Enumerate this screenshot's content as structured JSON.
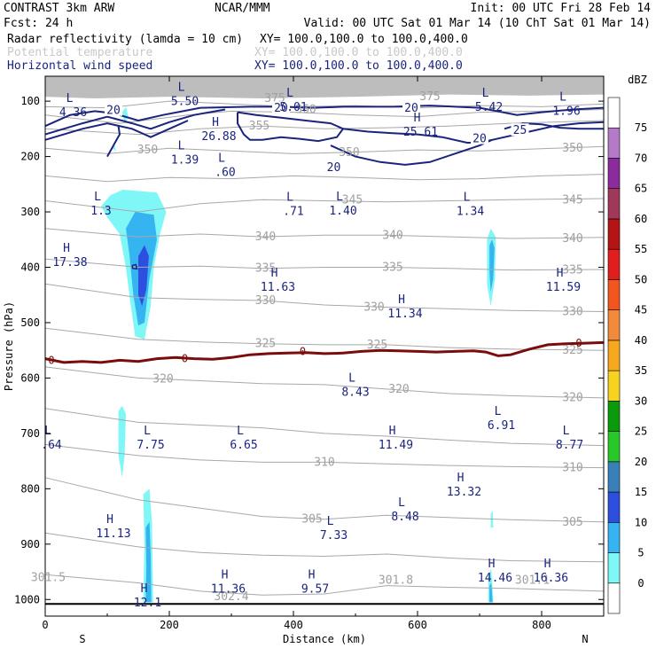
{
  "header": {
    "title_left": "CONTRAST  3km ARW",
    "title_mid": "NCAR/MMM",
    "init": "Init: 00 UTC Fri 28 Feb 14",
    "fcst": "Fcst:   24 h",
    "valid": "Valid: 00 UTC Sat 01 Mar 14 (10 ChT Sat 01 Mar 14)",
    "fields": [
      {
        "name": "Radar reflectivity (lamda = 10 cm)",
        "xy": "XY= 100.0,100.0 to 100.0,400.0",
        "color": "#000000"
      },
      {
        "name": "Potential temperature",
        "xy": "XY= 100.0,100.0 to 100.0,400.0",
        "color": "#c8c8c8"
      },
      {
        "name": "Horizontal wind speed",
        "xy": "XY= 100.0,100.0 to 100.0,400.0",
        "color": "#1a237e"
      }
    ]
  },
  "chart_data": {
    "type": "cross-section",
    "xlabel": "Distance (km)",
    "ylabel": "Pressure (hPa)",
    "xlim": [
      0,
      900
    ],
    "ylim": [
      1030,
      55
    ],
    "xticks": [
      0,
      200,
      400,
      600,
      800
    ],
    "yticks": [
      100,
      200,
      300,
      400,
      500,
      600,
      700,
      800,
      900,
      1000
    ],
    "x_end_labels": {
      "left": "S",
      "right": "N"
    },
    "colorbar": {
      "unit": "dBZ",
      "levels": [
        0,
        5,
        10,
        15,
        20,
        25,
        30,
        35,
        40,
        45,
        50,
        55,
        60,
        65,
        70,
        75
      ],
      "colors": [
        "#ffffff",
        "#7ff7f7",
        "#36b4f2",
        "#2d4fe0",
        "#3a80b8",
        "#29c829",
        "#0a9a0a",
        "#f7d21e",
        "#f7a91e",
        "#f28a3c",
        "#f2561e",
        "#e01e1e",
        "#b41414",
        "#a0385a",
        "#8c2b9b",
        "#b47ac8",
        "#ffffff"
      ]
    },
    "theta_labels": [
      {
        "v": "375",
        "x": 620,
        "p": 92
      },
      {
        "v": "375",
        "x": 370,
        "p": 95
      },
      {
        "v": "360",
        "x": 420,
        "p": 115
      },
      {
        "v": "355",
        "x": 345,
        "p": 145
      },
      {
        "v": "350",
        "x": 165,
        "p": 188
      },
      {
        "v": "350",
        "x": 490,
        "p": 193
      },
      {
        "v": "350",
        "x": 850,
        "p": 185
      },
      {
        "v": "345",
        "x": 495,
        "p": 278
      },
      {
        "v": "345",
        "x": 850,
        "p": 278
      },
      {
        "v": "340",
        "x": 355,
        "p": 345
      },
      {
        "v": "340",
        "x": 560,
        "p": 342
      },
      {
        "v": "340",
        "x": 850,
        "p": 348
      },
      {
        "v": "335",
        "x": 355,
        "p": 402
      },
      {
        "v": "335",
        "x": 560,
        "p": 400
      },
      {
        "v": "335",
        "x": 850,
        "p": 405
      },
      {
        "v": "330",
        "x": 355,
        "p": 460
      },
      {
        "v": "330",
        "x": 530,
        "p": 472
      },
      {
        "v": "330",
        "x": 850,
        "p": 480
      },
      {
        "v": "325",
        "x": 355,
        "p": 538
      },
      {
        "v": "325",
        "x": 535,
        "p": 540
      },
      {
        "v": "325",
        "x": 850,
        "p": 550
      },
      {
        "v": "320",
        "x": 190,
        "p": 602
      },
      {
        "v": "320",
        "x": 570,
        "p": 620
      },
      {
        "v": "320",
        "x": 850,
        "p": 635
      },
      {
        "v": "310",
        "x": 450,
        "p": 752
      },
      {
        "v": "310",
        "x": 850,
        "p": 762
      },
      {
        "v": "305",
        "x": 430,
        "p": 855
      },
      {
        "v": "305",
        "x": 850,
        "p": 860
      },
      {
        "v": "301.5",
        "x": 5,
        "p": 960
      },
      {
        "v": "302.4",
        "x": 300,
        "p": 995
      },
      {
        "v": "301.8",
        "x": 565,
        "p": 965
      },
      {
        "v": "301.1",
        "x": 785,
        "p": 965
      }
    ],
    "wind_labels": [
      {
        "v": "20",
        "x": 110,
        "p": 117
      },
      {
        "v": "20",
        "x": 380,
        "p": 113
      },
      {
        "v": "20",
        "x": 590,
        "p": 113
      },
      {
        "v": "20",
        "x": 465,
        "p": 220
      },
      {
        "v": "20",
        "x": 700,
        "p": 168
      },
      {
        "v": "25",
        "x": 765,
        "p": 153
      }
    ],
    "zero_isotherm_labels": [
      {
        "v": "0",
        "x": 10,
        "p": 568
      },
      {
        "v": "0",
        "x": 225,
        "p": 565
      },
      {
        "v": "0",
        "x": 415,
        "p": 552
      },
      {
        "v": "0",
        "x": 860,
        "p": 537
      }
    ],
    "extrema": [
      {
        "t": "L",
        "v": "4.36",
        "x": 45,
        "p": 105
      },
      {
        "t": "L",
        "v": "5.50",
        "x": 225,
        "p": 85
      },
      {
        "t": "H",
        "v": "26.88",
        "x": 280,
        "p": 148
      },
      {
        "t": "L",
        "v": "5.01",
        "x": 400,
        "p": 95
      },
      {
        "t": "H",
        "v": "25.61",
        "x": 605,
        "p": 140
      },
      {
        "t": "L",
        "v": "5.42",
        "x": 715,
        "p": 95
      },
      {
        "t": "L",
        "v": "1.96",
        "x": 840,
        "p": 102
      },
      {
        "t": "L",
        "v": "1.39",
        "x": 225,
        "p": 190
      },
      {
        "t": "L",
        "v": ".60",
        "x": 290,
        "p": 213
      },
      {
        "t": "L",
        "v": "1.3",
        "x": 90,
        "p": 282
      },
      {
        "t": "L",
        "v": ".71",
        "x": 400,
        "p": 283
      },
      {
        "t": "L",
        "v": "1.40",
        "x": 480,
        "p": 282
      },
      {
        "t": "L",
        "v": "1.34",
        "x": 685,
        "p": 283
      },
      {
        "t": "H",
        "v": "17.38",
        "x": 40,
        "p": 375
      },
      {
        "t": "H",
        "v": "11.63",
        "x": 375,
        "p": 420
      },
      {
        "t": "H",
        "v": "11.34",
        "x": 580,
        "p": 468
      },
      {
        "t": "H",
        "v": "11.59",
        "x": 835,
        "p": 420
      },
      {
        "t": "L",
        "v": "8.43",
        "x": 500,
        "p": 610
      },
      {
        "t": "L",
        "v": "6.91",
        "x": 735,
        "p": 670
      },
      {
        "t": "L",
        "v": ".64",
        "x": 10,
        "p": 705
      },
      {
        "t": "L",
        "v": "7.75",
        "x": 170,
        "p": 705
      },
      {
        "t": "L",
        "v": "6.65",
        "x": 320,
        "p": 705
      },
      {
        "t": "H",
        "v": "11.49",
        "x": 565,
        "p": 705
      },
      {
        "t": "L",
        "v": "8.77",
        "x": 845,
        "p": 705
      },
      {
        "t": "H",
        "v": "13.32",
        "x": 675,
        "p": 790
      },
      {
        "t": "L",
        "v": "8.48",
        "x": 580,
        "p": 835
      },
      {
        "t": "H",
        "v": "11.13",
        "x": 110,
        "p": 865
      },
      {
        "t": "L",
        "v": "7.33",
        "x": 465,
        "p": 868
      },
      {
        "t": "H",
        "v": "11.36",
        "x": 295,
        "p": 965
      },
      {
        "t": "H",
        "v": "9.57",
        "x": 435,
        "p": 965
      },
      {
        "t": "H",
        "v": "14.46",
        "x": 725,
        "p": 945
      },
      {
        "t": "H",
        "v": "16.36",
        "x": 815,
        "p": 945
      },
      {
        "t": "H",
        "v": "12.1",
        "x": 165,
        "p": 990
      }
    ]
  }
}
